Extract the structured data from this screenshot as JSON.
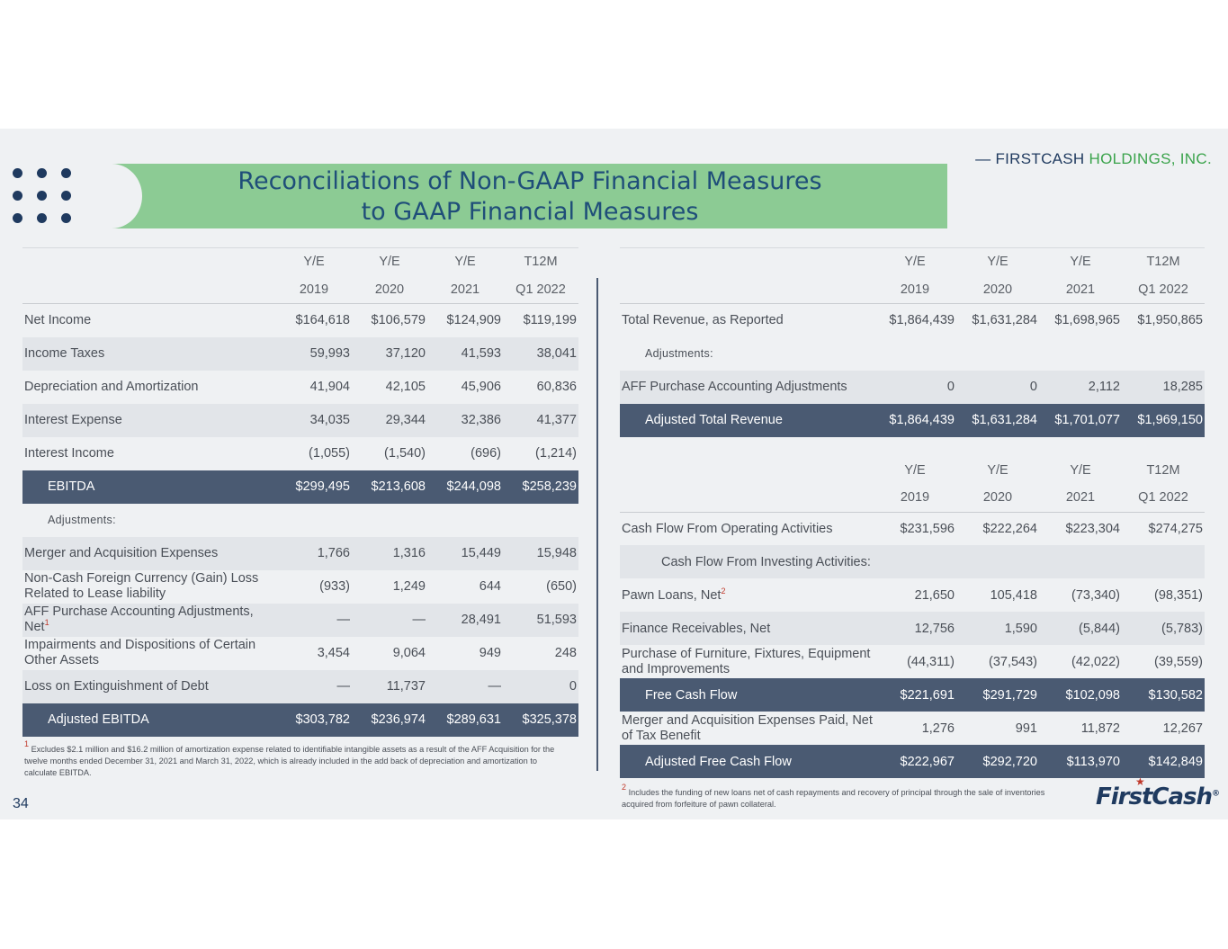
{
  "header": {
    "title_line1": "Reconciliations of Non-GAAP Financial Measures",
    "title_line2": "to GAAP Financial Measures",
    "brand_dash": "—",
    "brand_first": "FIRSTCASH",
    "brand_second": "HOLDINGS, INC."
  },
  "colors": {
    "navy": "#1f3a5f",
    "green_band": "#8ccb94",
    "total_row": "#4a5a72",
    "brand_green": "#3aa34b"
  },
  "columns": {
    "yr_labels": [
      "Y/E",
      "Y/E",
      "Y/E",
      "T12M"
    ],
    "periods": [
      "2019",
      "2020",
      "2021",
      "Q1 2022"
    ]
  },
  "left_table": {
    "rows": [
      {
        "label": "Net Income",
        "values": [
          "$164,618",
          "$106,579",
          "$124,909",
          "$119,199"
        ]
      },
      {
        "label": "Income Taxes",
        "values": [
          "59,993",
          "37,120",
          "41,593",
          "38,041"
        ]
      },
      {
        "label": "Depreciation and Amortization",
        "values": [
          "41,904",
          "42,105",
          "45,906",
          "60,836"
        ]
      },
      {
        "label": "Interest Expense",
        "values": [
          "34,035",
          "29,344",
          "32,386",
          "41,377"
        ]
      },
      {
        "label": "Interest Income",
        "values": [
          "(1,055)",
          "(1,540)",
          "(696)",
          "(1,214)"
        ]
      },
      {
        "label": "EBITDA",
        "values": [
          "$299,495",
          "$213,608",
          "$244,098",
          "$258,239"
        ]
      },
      {
        "label": "Adjustments:"
      },
      {
        "label": "Merger and Acquisition Expenses",
        "values": [
          "1,766",
          "1,316",
          "15,449",
          "15,948"
        ]
      },
      {
        "label": "Non-Cash Foreign Currency (Gain) Loss Related to Lease liability",
        "values": [
          "(933)",
          "1,249",
          "644",
          "(650)"
        ]
      },
      {
        "label": "AFF Purchase Accounting Adjustments, Net",
        "sup": "1",
        "values": [
          "—",
          "—",
          "28,491",
          "51,593"
        ]
      },
      {
        "label": "Impairments and Dispositions of Certain Other Assets",
        "values": [
          "3,454",
          "9,064",
          "949",
          "248"
        ]
      },
      {
        "label": "Loss on Extinguishment of Debt",
        "values": [
          "—",
          "11,737",
          "—",
          "0"
        ]
      },
      {
        "label": "Adjusted EBITDA",
        "values": [
          "$303,782",
          "$236,974",
          "$289,631",
          "$325,378"
        ]
      }
    ],
    "footnote_mark": "1",
    "footnote": "Excludes $2.1 million and $16.2 million of amortization expense related to identifiable intangible assets as a result of the AFF Acquisition for the twelve months ended December 31, 2021 and March 31, 2022, which is already included in the add back of depreciation and amortization to calculate EBITDA."
  },
  "revenue_table": {
    "rows": [
      {
        "label": "Total Revenue, as Reported",
        "values": [
          "$1,864,439",
          "$1,631,284",
          "$1,698,965",
          "$1,950,865"
        ]
      },
      {
        "label": "Adjustments:"
      },
      {
        "label": "AFF Purchase Accounting Adjustments",
        "values": [
          "0",
          "0",
          "2,112",
          "18,285"
        ]
      },
      {
        "label": "Adjusted Total Revenue",
        "values": [
          "$1,864,439",
          "$1,631,284",
          "$1,701,077",
          "$1,969,150"
        ]
      }
    ]
  },
  "cashflow_table": {
    "rows": [
      {
        "label": "Cash Flow From Operating Activities",
        "values": [
          "$231,596",
          "$222,264",
          "$223,304",
          "$274,275"
        ]
      },
      {
        "label": "Cash Flow From Investing Activities:"
      },
      {
        "label": "Pawn Loans, Net",
        "sup": "2",
        "values": [
          "21,650",
          "105,418",
          "(73,340)",
          "(98,351)"
        ]
      },
      {
        "label": "Finance Receivables, Net",
        "values": [
          "12,756",
          "1,590",
          "(5,844)",
          "(5,783)"
        ]
      },
      {
        "label": "Purchase of Furniture, Fixtures, Equipment and Improvements",
        "values": [
          "(44,311)",
          "(37,543)",
          "(42,022)",
          "(39,559)"
        ]
      },
      {
        "label": "Free Cash Flow",
        "values": [
          "$221,691",
          "$291,729",
          "$102,098",
          "$130,582"
        ]
      },
      {
        "label": "Merger and Acquisition Expenses Paid, Net of Tax Benefit",
        "values": [
          "1,276",
          "991",
          "11,872",
          "12,267"
        ]
      },
      {
        "label": "Adjusted Free Cash Flow",
        "values": [
          "$222,967",
          "$292,720",
          "$113,970",
          "$142,849"
        ]
      }
    ],
    "footnote_mark": "2",
    "footnote": "Includes the funding of new loans net of cash repayments and recovery of principal through the sale of inventories acquired from forfeiture of pawn collateral."
  },
  "page_number": "34",
  "logo_text": "FirstCash",
  "logo_reg": "®"
}
